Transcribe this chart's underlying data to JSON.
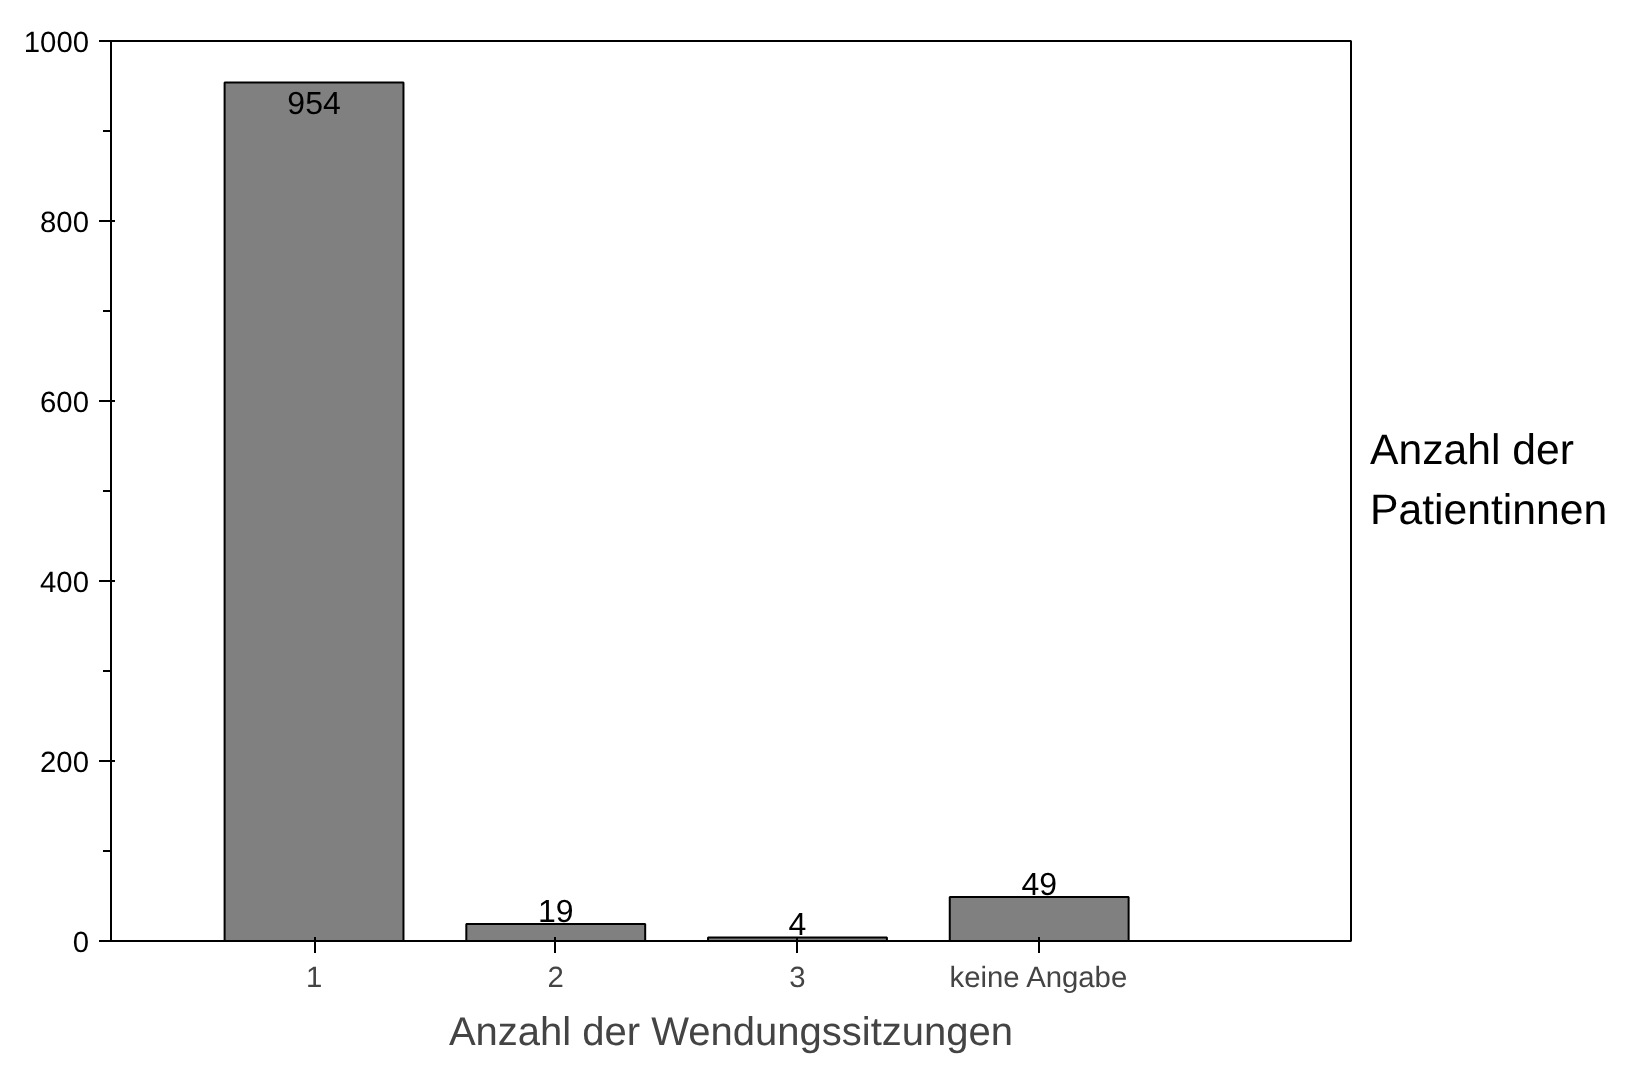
{
  "chart_data": {
    "type": "bar",
    "xlabel": "Anzahl der Wendungssitzungen",
    "ylabel": "Anzahl der Patientinnen",
    "categories": [
      "1",
      "2",
      "3",
      "keine Angabe"
    ],
    "values": [
      954,
      19,
      4,
      49
    ],
    "color": "#808080",
    "ylim": [
      0,
      1000
    ],
    "yticks": [
      0,
      200,
      400,
      600,
      800,
      1000
    ],
    "grid": false,
    "data_labels": true
  }
}
